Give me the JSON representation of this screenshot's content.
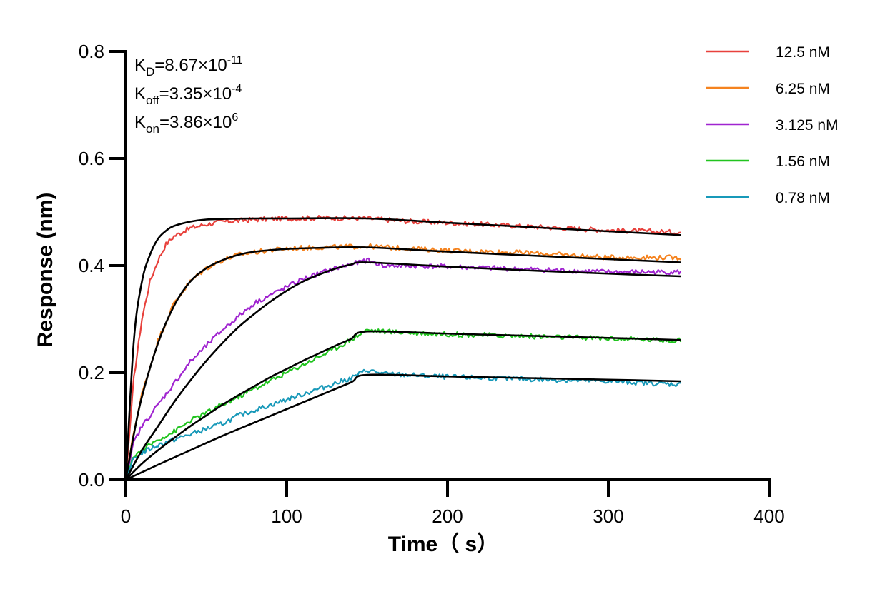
{
  "chart_data": {
    "type": "line",
    "title": "",
    "xlabel": "Time（ s）",
    "ylabel": "Response (nm)",
    "xlim": [
      0,
      400
    ],
    "ylim": [
      0,
      0.8
    ],
    "xticks": [
      0,
      100,
      200,
      300,
      400
    ],
    "yticks": [
      0.0,
      0.2,
      0.4,
      0.6,
      0.8
    ],
    "xtick_labels": [
      "0",
      "100",
      "200",
      "300",
      "400"
    ],
    "ytick_labels": [
      "0.0",
      "0.2",
      "0.4",
      "0.6",
      "0.8"
    ],
    "grid": false,
    "legend_position": "top-right",
    "association_end": 150,
    "annotations": [
      {
        "main": "K",
        "sub": "D",
        "mid": "=8.67×10",
        "sup": "-11"
      },
      {
        "main": "K",
        "sub": "off",
        "mid": "=3.35×10",
        "sup": "-4"
      },
      {
        "main": "K",
        "sub": "on",
        "mid": "=3.86×10",
        "sup": "6"
      }
    ],
    "series": [
      {
        "name": "12.5 nM",
        "color": "#e8413c",
        "x": [
          0,
          5,
          10,
          15,
          20,
          25,
          30,
          40,
          50,
          60,
          80,
          100,
          120,
          150,
          180,
          200,
          250,
          300,
          345
        ],
        "y": [
          0.0,
          0.19,
          0.3,
          0.37,
          0.41,
          0.44,
          0.455,
          0.47,
          0.477,
          0.482,
          0.486,
          0.488,
          0.489,
          0.488,
          0.482,
          0.48,
          0.473,
          0.466,
          0.462
        ],
        "fit_x": [
          0,
          5,
          10,
          15,
          20,
          25,
          30,
          40,
          50,
          60,
          80,
          100,
          150,
          200,
          250,
          300,
          345
        ],
        "fit_y": [
          0.0,
          0.26,
          0.37,
          0.42,
          0.45,
          0.465,
          0.474,
          0.482,
          0.486,
          0.487,
          0.488,
          0.488,
          0.488,
          0.48,
          0.472,
          0.464,
          0.457
        ]
      },
      {
        "name": "6.25 nM",
        "color": "#f5831f",
        "x": [
          0,
          5,
          10,
          20,
          30,
          40,
          50,
          60,
          70,
          80,
          100,
          120,
          150,
          200,
          250,
          300,
          345
        ],
        "y": [
          0.0,
          0.09,
          0.16,
          0.26,
          0.33,
          0.37,
          0.395,
          0.41,
          0.42,
          0.425,
          0.432,
          0.434,
          0.436,
          0.428,
          0.424,
          0.415,
          0.415
        ],
        "fit_x": [
          0,
          5,
          10,
          20,
          30,
          40,
          50,
          60,
          70,
          80,
          100,
          120,
          150,
          200,
          250,
          300,
          345
        ],
        "fit_y": [
          0.0,
          0.085,
          0.155,
          0.255,
          0.325,
          0.37,
          0.395,
          0.41,
          0.42,
          0.426,
          0.431,
          0.433,
          0.434,
          0.426,
          0.419,
          0.412,
          0.406
        ]
      },
      {
        "name": "3.125 nM",
        "color": "#a024d0",
        "x": [
          0,
          5,
          10,
          20,
          30,
          40,
          50,
          60,
          70,
          80,
          90,
          100,
          110,
          120,
          130,
          140,
          150,
          160,
          200,
          250,
          300,
          345
        ],
        "y": [
          0.0,
          0.07,
          0.1,
          0.14,
          0.18,
          0.22,
          0.25,
          0.28,
          0.305,
          0.33,
          0.345,
          0.36,
          0.375,
          0.385,
          0.395,
          0.402,
          0.41,
          0.4,
          0.398,
          0.393,
          0.388,
          0.388
        ],
        "fit_x": [
          0,
          10,
          20,
          30,
          40,
          50,
          60,
          70,
          80,
          90,
          100,
          110,
          120,
          130,
          140,
          150,
          200,
          250,
          300,
          345
        ],
        "fit_y": [
          0.0,
          0.055,
          0.1,
          0.145,
          0.185,
          0.222,
          0.255,
          0.285,
          0.31,
          0.333,
          0.353,
          0.37,
          0.383,
          0.394,
          0.402,
          0.406,
          0.398,
          0.391,
          0.385,
          0.38
        ]
      },
      {
        "name": "1.56 nM",
        "color": "#21c41f",
        "x": [
          0,
          5,
          10,
          20,
          30,
          40,
          50,
          60,
          70,
          80,
          90,
          100,
          110,
          120,
          130,
          140,
          150,
          160,
          200,
          250,
          300,
          345
        ],
        "y": [
          0.0,
          0.045,
          0.055,
          0.075,
          0.09,
          0.11,
          0.125,
          0.14,
          0.155,
          0.17,
          0.185,
          0.2,
          0.215,
          0.23,
          0.245,
          0.262,
          0.28,
          0.277,
          0.272,
          0.268,
          0.264,
          0.26
        ],
        "fit_x": [
          0,
          10,
          20,
          30,
          40,
          50,
          60,
          70,
          80,
          90,
          100,
          110,
          120,
          130,
          140,
          150,
          200,
          250,
          300,
          345
        ],
        "fit_y": [
          0.0,
          0.03,
          0.055,
          0.078,
          0.1,
          0.12,
          0.14,
          0.158,
          0.175,
          0.192,
          0.207,
          0.222,
          0.236,
          0.25,
          0.263,
          0.277,
          0.273,
          0.269,
          0.265,
          0.261
        ]
      },
      {
        "name": "0.78 nM",
        "color": "#1899b9",
        "x": [
          0,
          5,
          10,
          20,
          30,
          40,
          50,
          60,
          70,
          80,
          90,
          100,
          110,
          120,
          130,
          140,
          150,
          160,
          200,
          250,
          300,
          345
        ],
        "y": [
          0.0,
          0.04,
          0.05,
          0.065,
          0.075,
          0.085,
          0.095,
          0.105,
          0.12,
          0.13,
          0.14,
          0.15,
          0.16,
          0.17,
          0.18,
          0.19,
          0.205,
          0.198,
          0.192,
          0.188,
          0.184,
          0.178
        ],
        "fit_x": [
          0,
          20,
          40,
          60,
          80,
          100,
          120,
          140,
          150,
          200,
          250,
          300,
          345
        ],
        "fit_y": [
          0.0,
          0.028,
          0.055,
          0.082,
          0.107,
          0.132,
          0.157,
          0.182,
          0.196,
          0.193,
          0.19,
          0.187,
          0.184
        ]
      }
    ]
  }
}
